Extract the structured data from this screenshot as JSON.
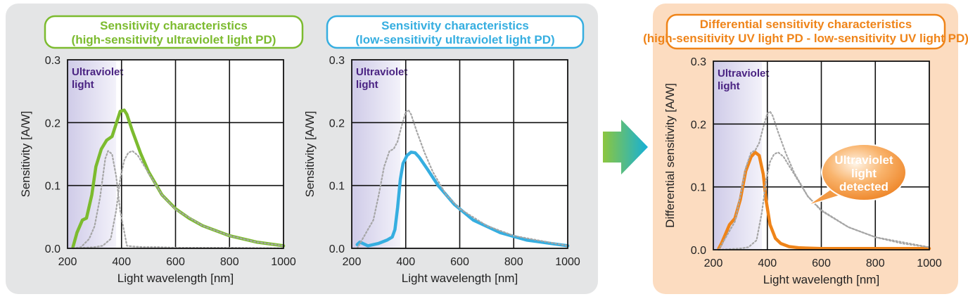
{
  "colors": {
    "group_bg": "#e4e5e6",
    "diff_bg": "#fcdcc0",
    "green": "#7cbb2f",
    "blue": "#36aee0",
    "orange": "#ef8419",
    "reference": "#a6a6a6",
    "uv_band": "#dcdaee",
    "uv_text": "#4a2382"
  },
  "arrow_icon": "right-arrow-icon",
  "chart_data": [
    {
      "type": "line",
      "title_lines": [
        "Sensitivity characteristics",
        "(high-sensitivity ultraviolet light PD)"
      ],
      "xlabel": "Light wavelength [nm]",
      "ylabel": "Sensitivity [A/W]",
      "xlim": [
        200,
        1000
      ],
      "ylim": [
        0,
        0.3
      ],
      "xticks": [
        "200",
        "400",
        "600",
        "800",
        "1000"
      ],
      "yticks": [
        "0.0",
        "0.1",
        "0.2",
        "0.3"
      ],
      "grid": true,
      "uv_band": {
        "range": [
          200,
          380
        ],
        "label_lines": [
          "Ultraviolet",
          "light"
        ]
      },
      "series": [
        {
          "style": "solid",
          "color": "green",
          "x": [
            220,
            235,
            255,
            270,
            290,
            305,
            325,
            345,
            365,
            380,
            395,
            410,
            420,
            440,
            470,
            500,
            550,
            600,
            650,
            700,
            800,
            900,
            1000
          ],
          "y": [
            0.002,
            0.025,
            0.045,
            0.048,
            0.085,
            0.13,
            0.158,
            0.172,
            0.178,
            0.198,
            0.218,
            0.22,
            0.213,
            0.187,
            0.152,
            0.122,
            0.085,
            0.063,
            0.048,
            0.036,
            0.02,
            0.01,
            0.004
          ]
        },
        {
          "style": "dotted",
          "color": "reference",
          "x": [
            220,
            250,
            280,
            300,
            320,
            340,
            350,
            365,
            380,
            395,
            420,
            440,
            480,
            530,
            600,
            700,
            800,
            1000
          ],
          "y": [
            0,
            0.002,
            0.015,
            0.035,
            0.08,
            0.143,
            0.155,
            0.15,
            0.115,
            0.06,
            0.004,
            0.003,
            0.002,
            0.002,
            0.001,
            0.001,
            0.001,
            0.0
          ]
        },
        {
          "style": "dotted",
          "color": "reference",
          "x": [
            220,
            260,
            300,
            330,
            360,
            380,
            395,
            410,
            425,
            440,
            460,
            500,
            550,
            600,
            700,
            800,
            900,
            1000
          ],
          "y": [
            0,
            0.001,
            0.002,
            0.004,
            0.015,
            0.06,
            0.11,
            0.14,
            0.152,
            0.155,
            0.148,
            0.12,
            0.085,
            0.062,
            0.036,
            0.02,
            0.01,
            0.004
          ]
        }
      ]
    },
    {
      "type": "line",
      "title_lines": [
        "Sensitivity characteristics",
        "(low-sensitivity ultraviolet light PD)"
      ],
      "xlabel": "Light wavelength [nm]",
      "ylabel": "Sensitivity [A/W]",
      "xlim": [
        200,
        1000
      ],
      "ylim": [
        0,
        0.3
      ],
      "xticks": [
        "200",
        "400",
        "600",
        "800",
        "1000"
      ],
      "yticks": [
        "0.0",
        "0.1",
        "0.2",
        "0.3"
      ],
      "grid": true,
      "uv_band": {
        "range": [
          200,
          380
        ],
        "label_lines": [
          "Ultraviolet",
          "light"
        ]
      },
      "series": [
        {
          "style": "solid",
          "color": "blue",
          "x": [
            220,
            230,
            260,
            300,
            330,
            350,
            360,
            370,
            380,
            390,
            405,
            420,
            435,
            450,
            480,
            520,
            580,
            650,
            750,
            850,
            1000
          ],
          "y": [
            0.006,
            0.01,
            0.004,
            0.008,
            0.013,
            0.018,
            0.03,
            0.065,
            0.11,
            0.135,
            0.148,
            0.153,
            0.152,
            0.145,
            0.126,
            0.1,
            0.07,
            0.045,
            0.025,
            0.013,
            0.004
          ]
        },
        {
          "style": "dotted",
          "color": "reference",
          "x": [
            220,
            240,
            260,
            280,
            300,
            320,
            340,
            355,
            370,
            385,
            400,
            410,
            420,
            440,
            470,
            500,
            550,
            600,
            700,
            800,
            1000
          ],
          "y": [
            0,
            0.015,
            0.03,
            0.045,
            0.085,
            0.13,
            0.155,
            0.158,
            0.17,
            0.195,
            0.217,
            0.22,
            0.213,
            0.187,
            0.152,
            0.122,
            0.085,
            0.063,
            0.036,
            0.02,
            0.004
          ]
        }
      ]
    },
    {
      "type": "line",
      "title_lines": [
        "Differential sensitivity characteristics",
        "(high-sensitivity UV light PD - low-sensitivity UV light PD)"
      ],
      "xlabel": "Light wavelength [nm]",
      "ylabel": "Differential sensitivity [A/W]",
      "xlim": [
        200,
        1000
      ],
      "ylim": [
        0,
        0.3
      ],
      "xticks": [
        "200",
        "400",
        "600",
        "800",
        "1000"
      ],
      "yticks": [
        "0.0",
        "0.1",
        "0.2",
        "0.3"
      ],
      "grid": true,
      "uv_band": {
        "range": [
          200,
          380
        ],
        "label_lines": [
          "Ultraviolet",
          "light"
        ]
      },
      "annotation_lines": [
        "Ultraviolet",
        "light",
        "detected"
      ],
      "series": [
        {
          "style": "solid",
          "color": "orange",
          "x": [
            220,
            230,
            245,
            260,
            280,
            300,
            320,
            340,
            355,
            370,
            385,
            395,
            410,
            430,
            450,
            480,
            520,
            600,
            700,
            850,
            1000
          ],
          "y": [
            0.002,
            0.01,
            0.025,
            0.04,
            0.05,
            0.08,
            0.125,
            0.148,
            0.155,
            0.15,
            0.12,
            0.08,
            0.04,
            0.018,
            0.01,
            0.005,
            0.003,
            0.002,
            0.002,
            0.002,
            0.002
          ]
        },
        {
          "style": "dotted",
          "color": "reference",
          "x": [
            220,
            240,
            260,
            280,
            300,
            320,
            340,
            355,
            370,
            385,
            400,
            410,
            420,
            440,
            470,
            500,
            550,
            600,
            700,
            800,
            1000
          ],
          "y": [
            0,
            0.015,
            0.03,
            0.045,
            0.085,
            0.13,
            0.155,
            0.158,
            0.17,
            0.195,
            0.217,
            0.22,
            0.213,
            0.187,
            0.152,
            0.122,
            0.085,
            0.063,
            0.036,
            0.02,
            0.004
          ]
        },
        {
          "style": "dotted",
          "color": "reference",
          "x": [
            220,
            260,
            300,
            330,
            360,
            380,
            395,
            410,
            425,
            440,
            460,
            500,
            550,
            600,
            700,
            800,
            900,
            1000
          ],
          "y": [
            0,
            0.001,
            0.002,
            0.004,
            0.015,
            0.06,
            0.11,
            0.14,
            0.152,
            0.155,
            0.148,
            0.12,
            0.085,
            0.062,
            0.036,
            0.02,
            0.01,
            0.004
          ]
        }
      ]
    }
  ]
}
